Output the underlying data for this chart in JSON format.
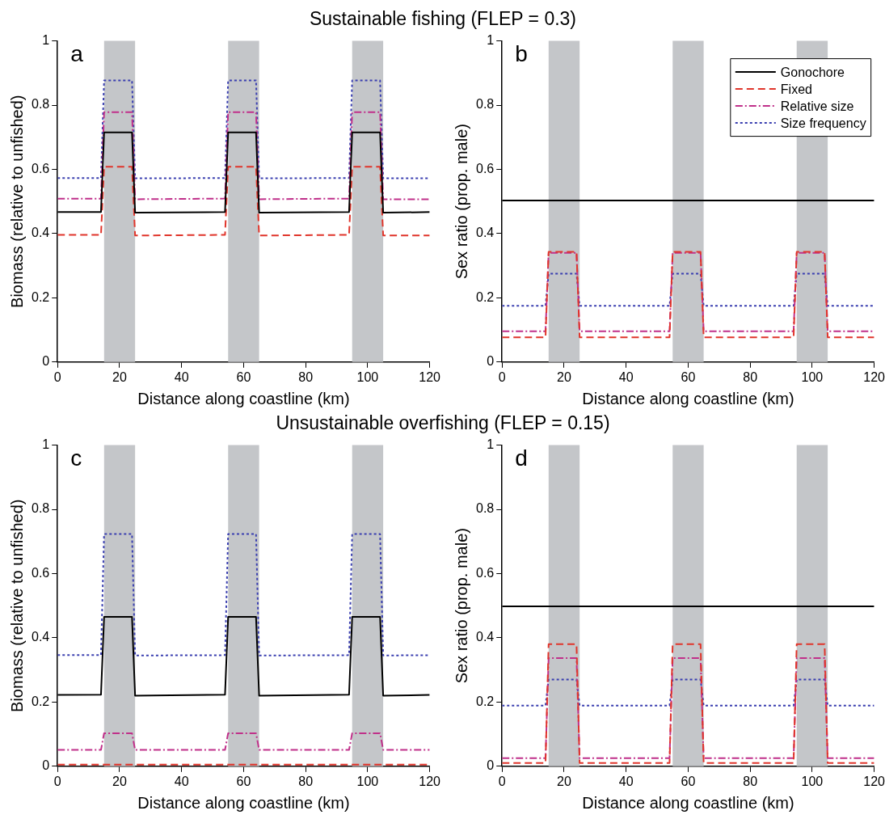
{
  "chart_data": [
    {
      "type": "line",
      "title": "Sustainable fishing (FLEP = 0.3)",
      "xlabel": "Distance along coastline (km)",
      "ylabel": "Biomass (relative to unfished)",
      "annotations": [
        "a"
      ],
      "marker": "none",
      "x": [
        0,
        14,
        15,
        24,
        25,
        54,
        55,
        64,
        65,
        94,
        95,
        104,
        105,
        120
      ],
      "xlim": [
        0,
        120
      ],
      "xticks": [
        0,
        20,
        40,
        60,
        80,
        100,
        120
      ],
      "ylim": [
        0,
        1
      ],
      "yticks": [
        0,
        0.2,
        0.4,
        0.6,
        0.8,
        1
      ],
      "bands": [
        {
          "axis": "x",
          "from": 15,
          "to": 25,
          "color": "#c4c6c9"
        },
        {
          "axis": "x",
          "from": 55,
          "to": 65,
          "color": "#c4c6c9"
        },
        {
          "axis": "x",
          "from": 95,
          "to": 105,
          "color": "#c4c6c9"
        }
      ],
      "series": [
        {
          "color": "#000000",
          "line_style": "solid",
          "values": [
            0.467,
            0.467,
            0.715,
            0.715,
            0.465,
            0.467,
            0.715,
            0.715,
            0.465,
            0.467,
            0.715,
            0.715,
            0.465,
            0.467
          ]
        },
        {
          "color": "#e0352b",
          "line_style": "dashed",
          "values": [
            0.396,
            0.396,
            0.608,
            0.608,
            0.394,
            0.396,
            0.608,
            0.608,
            0.394,
            0.396,
            0.608,
            0.608,
            0.394,
            0.394
          ]
        },
        {
          "color": "#c0308a",
          "line_style": "dashdot",
          "values": [
            0.509,
            0.509,
            0.778,
            0.778,
            0.507,
            0.509,
            0.778,
            0.778,
            0.507,
            0.509,
            0.778,
            0.778,
            0.507,
            0.507
          ]
        },
        {
          "color": "#3a3fb0",
          "line_style": "dotted",
          "values": [
            0.573,
            0.573,
            0.877,
            0.877,
            0.572,
            0.573,
            0.877,
            0.877,
            0.572,
            0.573,
            0.877,
            0.877,
            0.572,
            0.572
          ]
        }
      ]
    },
    {
      "type": "line",
      "xlabel": "Distance along coastline (km)",
      "ylabel": "Sex ratio (prop. male)",
      "annotations": [
        "b"
      ],
      "marker": "none",
      "legend": "top right",
      "x": [
        0,
        14,
        15,
        24,
        25,
        54,
        55,
        64,
        65,
        94,
        95,
        104,
        105,
        120
      ],
      "xlim": [
        0,
        120
      ],
      "xticks": [
        0,
        20,
        40,
        60,
        80,
        100,
        120
      ],
      "ylim": [
        0,
        1
      ],
      "yticks": [
        0,
        0.2,
        0.4,
        0.6,
        0.8,
        1
      ],
      "bands": [
        {
          "axis": "x",
          "from": 15,
          "to": 25,
          "color": "#c4c6c9"
        },
        {
          "axis": "x",
          "from": 55,
          "to": 65,
          "color": "#c4c6c9"
        },
        {
          "axis": "x",
          "from": 95,
          "to": 105,
          "color": "#c4c6c9"
        }
      ],
      "series": [
        {
          "name": "Gonochore",
          "color": "#000000",
          "line_style": "solid",
          "values": [
            0.503,
            0.503,
            0.503,
            0.503,
            0.503,
            0.503,
            0.503,
            0.503,
            0.503,
            0.503,
            0.503,
            0.503,
            0.503,
            0.503
          ]
        },
        {
          "name": "Fixed",
          "color": "#e0352b",
          "line_style": "dashed",
          "values": [
            0.077,
            0.077,
            0.343,
            0.343,
            0.077,
            0.077,
            0.343,
            0.343,
            0.077,
            0.077,
            0.343,
            0.343,
            0.077,
            0.077
          ]
        },
        {
          "name": "Relative size",
          "color": "#c0308a",
          "line_style": "dashdot",
          "values": [
            0.096,
            0.096,
            0.34,
            0.34,
            0.096,
            0.096,
            0.34,
            0.34,
            0.096,
            0.096,
            0.34,
            0.34,
            0.096,
            0.096
          ]
        },
        {
          "name": "Size frequency",
          "color": "#3a3fb0",
          "line_style": "dotted",
          "values": [
            0.175,
            0.175,
            0.275,
            0.275,
            0.175,
            0.175,
            0.275,
            0.275,
            0.175,
            0.175,
            0.275,
            0.275,
            0.175,
            0.175
          ]
        }
      ]
    },
    {
      "type": "line",
      "title": "Unsustainable overfishing (FLEP = 0.15)",
      "xlabel": "Distance along coastline (km)",
      "ylabel": "Biomass (relative to unfished)",
      "annotations": [
        "c"
      ],
      "marker": "none",
      "x": [
        0,
        14,
        15,
        24,
        25,
        54,
        55,
        64,
        65,
        94,
        95,
        104,
        105,
        120
      ],
      "xlim": [
        0,
        120
      ],
      "xticks": [
        0,
        20,
        40,
        60,
        80,
        100,
        120
      ],
      "ylim": [
        0,
        1
      ],
      "yticks": [
        0,
        0.2,
        0.4,
        0.6,
        0.8,
        1
      ],
      "bands": [
        {
          "axis": "x",
          "from": 15,
          "to": 25,
          "color": "#c4c6c9"
        },
        {
          "axis": "x",
          "from": 55,
          "to": 65,
          "color": "#c4c6c9"
        },
        {
          "axis": "x",
          "from": 95,
          "to": 105,
          "color": "#c4c6c9"
        }
      ],
      "series": [
        {
          "color": "#000000",
          "line_style": "solid",
          "values": [
            0.222,
            0.223,
            0.465,
            0.465,
            0.22,
            0.223,
            0.465,
            0.465,
            0.22,
            0.223,
            0.465,
            0.465,
            0.22,
            0.222
          ]
        },
        {
          "color": "#e0352b",
          "line_style": "dashed",
          "values": [
            0.005,
            0.005,
            0.005,
            0.005,
            0.005,
            0.005,
            0.005,
            0.005,
            0.005,
            0.005,
            0.005,
            0.005,
            0.005,
            0.005
          ]
        },
        {
          "color": "#c0308a",
          "line_style": "dashdot",
          "values": [
            0.051,
            0.051,
            0.103,
            0.103,
            0.051,
            0.051,
            0.103,
            0.103,
            0.051,
            0.051,
            0.103,
            0.103,
            0.051,
            0.051
          ]
        },
        {
          "color": "#3a3fb0",
          "line_style": "dotted",
          "values": [
            0.346,
            0.346,
            0.723,
            0.723,
            0.345,
            0.346,
            0.723,
            0.723,
            0.345,
            0.346,
            0.723,
            0.723,
            0.345,
            0.346
          ]
        }
      ]
    },
    {
      "type": "line",
      "xlabel": "Distance along coastline (km)",
      "ylabel": "Sex ratio (prop. male)",
      "annotations": [
        "d"
      ],
      "marker": "none",
      "x": [
        0,
        14,
        15,
        24,
        25,
        54,
        55,
        64,
        65,
        94,
        95,
        104,
        105,
        120
      ],
      "xlim": [
        0,
        120
      ],
      "xticks": [
        0,
        20,
        40,
        60,
        80,
        100,
        120
      ],
      "ylim": [
        0,
        1
      ],
      "yticks": [
        0,
        0.2,
        0.4,
        0.6,
        0.8,
        1
      ],
      "bands": [
        {
          "axis": "x",
          "from": 15,
          "to": 25,
          "color": "#c4c6c9"
        },
        {
          "axis": "x",
          "from": 55,
          "to": 65,
          "color": "#c4c6c9"
        },
        {
          "axis": "x",
          "from": 95,
          "to": 105,
          "color": "#c4c6c9"
        }
      ],
      "series": [
        {
          "color": "#000000",
          "line_style": "solid",
          "values": [
            0.498,
            0.498,
            0.498,
            0.498,
            0.498,
            0.498,
            0.498,
            0.498,
            0.498,
            0.498,
            0.498,
            0.498,
            0.498,
            0.498
          ]
        },
        {
          "color": "#e0352b",
          "line_style": "dashed",
          "values": [
            0.01,
            0.01,
            0.38,
            0.38,
            0.01,
            0.01,
            0.38,
            0.38,
            0.01,
            0.01,
            0.38,
            0.38,
            0.01,
            0.01
          ]
        },
        {
          "color": "#c0308a",
          "line_style": "dashdot",
          "values": [
            0.025,
            0.025,
            0.337,
            0.337,
            0.025,
            0.025,
            0.337,
            0.337,
            0.025,
            0.025,
            0.337,
            0.337,
            0.025,
            0.025
          ]
        },
        {
          "color": "#3a3fb0",
          "line_style": "dotted",
          "values": [
            0.189,
            0.189,
            0.27,
            0.27,
            0.189,
            0.189,
            0.27,
            0.27,
            0.189,
            0.189,
            0.27,
            0.27,
            0.189,
            0.189
          ]
        }
      ]
    }
  ]
}
